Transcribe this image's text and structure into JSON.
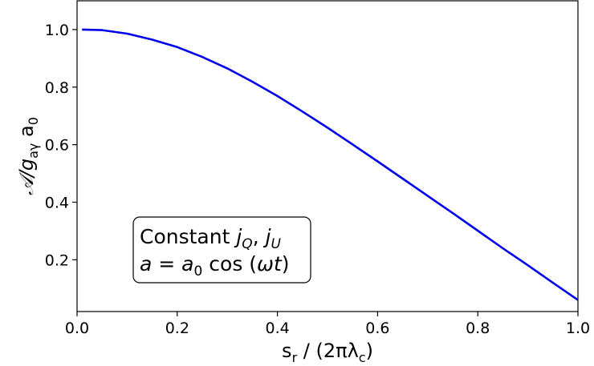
{
  "chart_data": {
    "type": "line",
    "xlabel": "s",
    "xlabel_sub": "r",
    "xlabel_rest": " / (2πλ",
    "xlabel_sub2": "c",
    "xlabel_end": ")",
    "ylabel": "𝒜/g",
    "ylabel_sub": "aγ",
    "ylabel_rest": " a",
    "ylabel_sub2": "0",
    "xlim": [
      0.0,
      1.0
    ],
    "ylim": [
      0.02,
      1.1
    ],
    "xticks": [
      0.0,
      0.2,
      0.4,
      0.6,
      0.8,
      1.0
    ],
    "xtick_labels": [
      "0.0",
      "0.2",
      "0.4",
      "0.6",
      "0.8",
      "1.0"
    ],
    "yticks": [
      0.2,
      0.4,
      0.6,
      0.8,
      1.0
    ],
    "ytick_labels": [
      "0.2",
      "0.4",
      "0.6",
      "0.8",
      "1.0"
    ],
    "grid": false,
    "series": [
      {
        "color": "#0000ee",
        "x": [
          0.01,
          0.05,
          0.1,
          0.15,
          0.2,
          0.25,
          0.3,
          0.35,
          0.4,
          0.45,
          0.5,
          0.55,
          0.6,
          0.65,
          0.7,
          0.75,
          0.8,
          0.85,
          0.9,
          0.95,
          1.0
        ],
        "y": [
          1.0,
          0.998,
          0.986,
          0.965,
          0.939,
          0.905,
          0.865,
          0.819,
          0.769,
          0.715,
          0.659,
          0.601,
          0.542,
          0.482,
          0.422,
          0.362,
          0.301,
          0.24,
          0.181,
          0.12,
          0.06
        ]
      }
    ],
    "annotation": {
      "line1_prefix": "Constant ",
      "line1_j1": "j",
      "line1_j1_sub": "Q",
      "line1_sep": ", ",
      "line1_j2": "j",
      "line1_j2_sub": "U",
      "line2_a": "a",
      "line2_eq": " = ",
      "line2_a0": "a",
      "line2_a0_sub": "0",
      "line2_cos": " cos (",
      "line2_omega": "ωt",
      "line2_close": ")"
    }
  }
}
